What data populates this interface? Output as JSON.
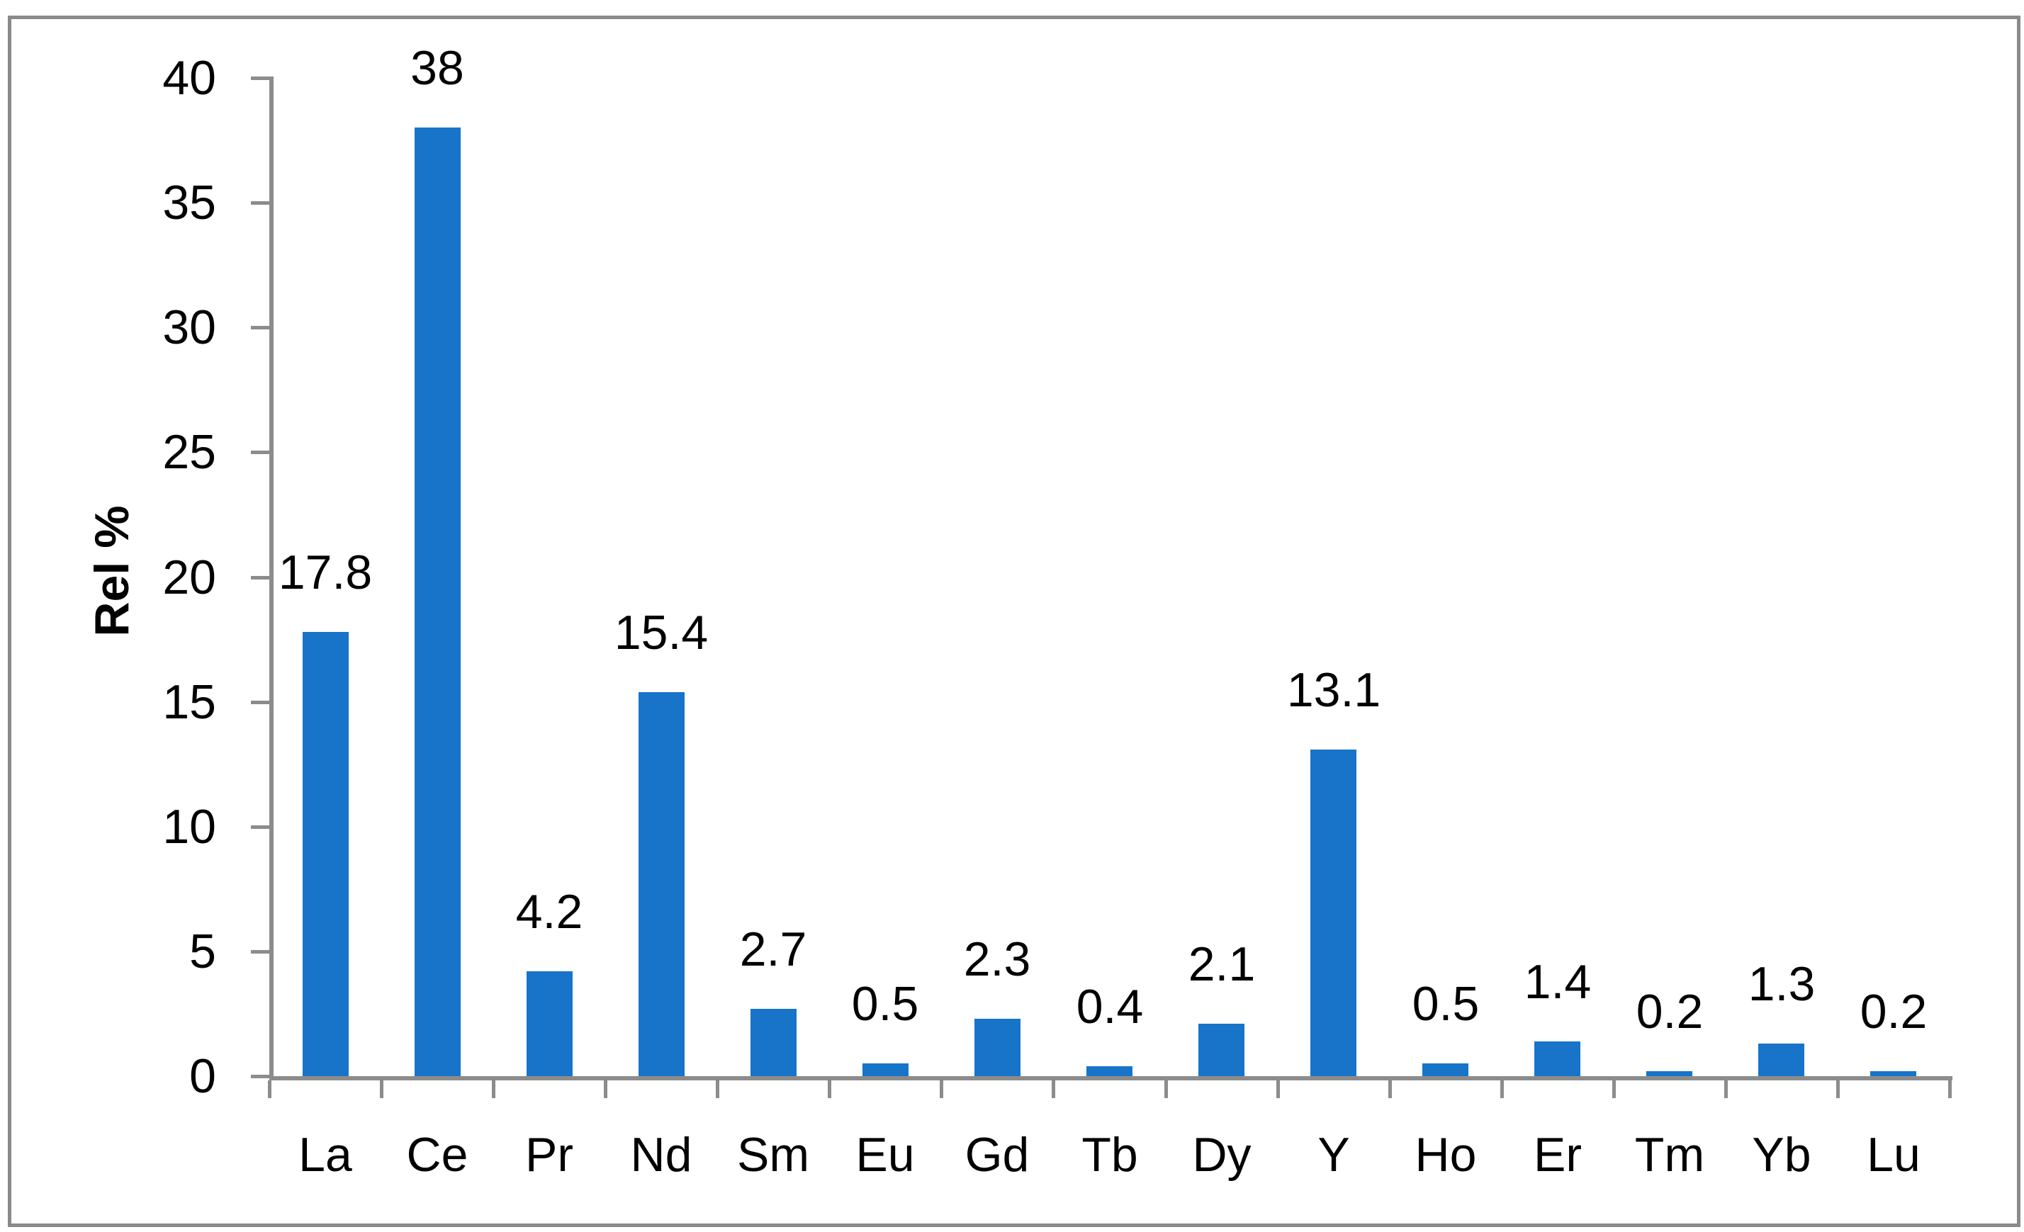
{
  "chart_data": {
    "type": "bar",
    "title": "",
    "categories": [
      "La",
      "Ce",
      "Pr",
      "Nd",
      "Sm",
      "Eu",
      "Gd",
      "Tb",
      "Dy",
      "Y",
      "Ho",
      "Er",
      "Tm",
      "Yb",
      "Lu"
    ],
    "values": [
      17.8,
      38,
      4.2,
      15.4,
      2.7,
      0.5,
      2.3,
      0.4,
      2.1,
      13.1,
      0.5,
      1.4,
      0.2,
      1.3,
      0.2
    ],
    "data_labels": [
      "17.8",
      "38",
      "4.2",
      "15.4",
      "2.7",
      "0.5",
      "2.3",
      "0.4",
      "2.1",
      "13.1",
      "0.5",
      "1.4",
      "0.2",
      "1.3",
      "0.2"
    ],
    "xlabel": "",
    "ylabel": "Rel %",
    "ylim": [
      0,
      40
    ],
    "ytick_step": 5,
    "ytick_labels": [
      "0",
      "5",
      "10",
      "15",
      "20",
      "25",
      "30",
      "35",
      "40"
    ],
    "grid": false,
    "legend": false,
    "data_label_position": "outside-end",
    "colors": {
      "bar": "#1774c8",
      "axis": "#8c8c8c",
      "text": "#000000",
      "frame_border": "#8a8a8a",
      "background": "#ffffff"
    }
  }
}
